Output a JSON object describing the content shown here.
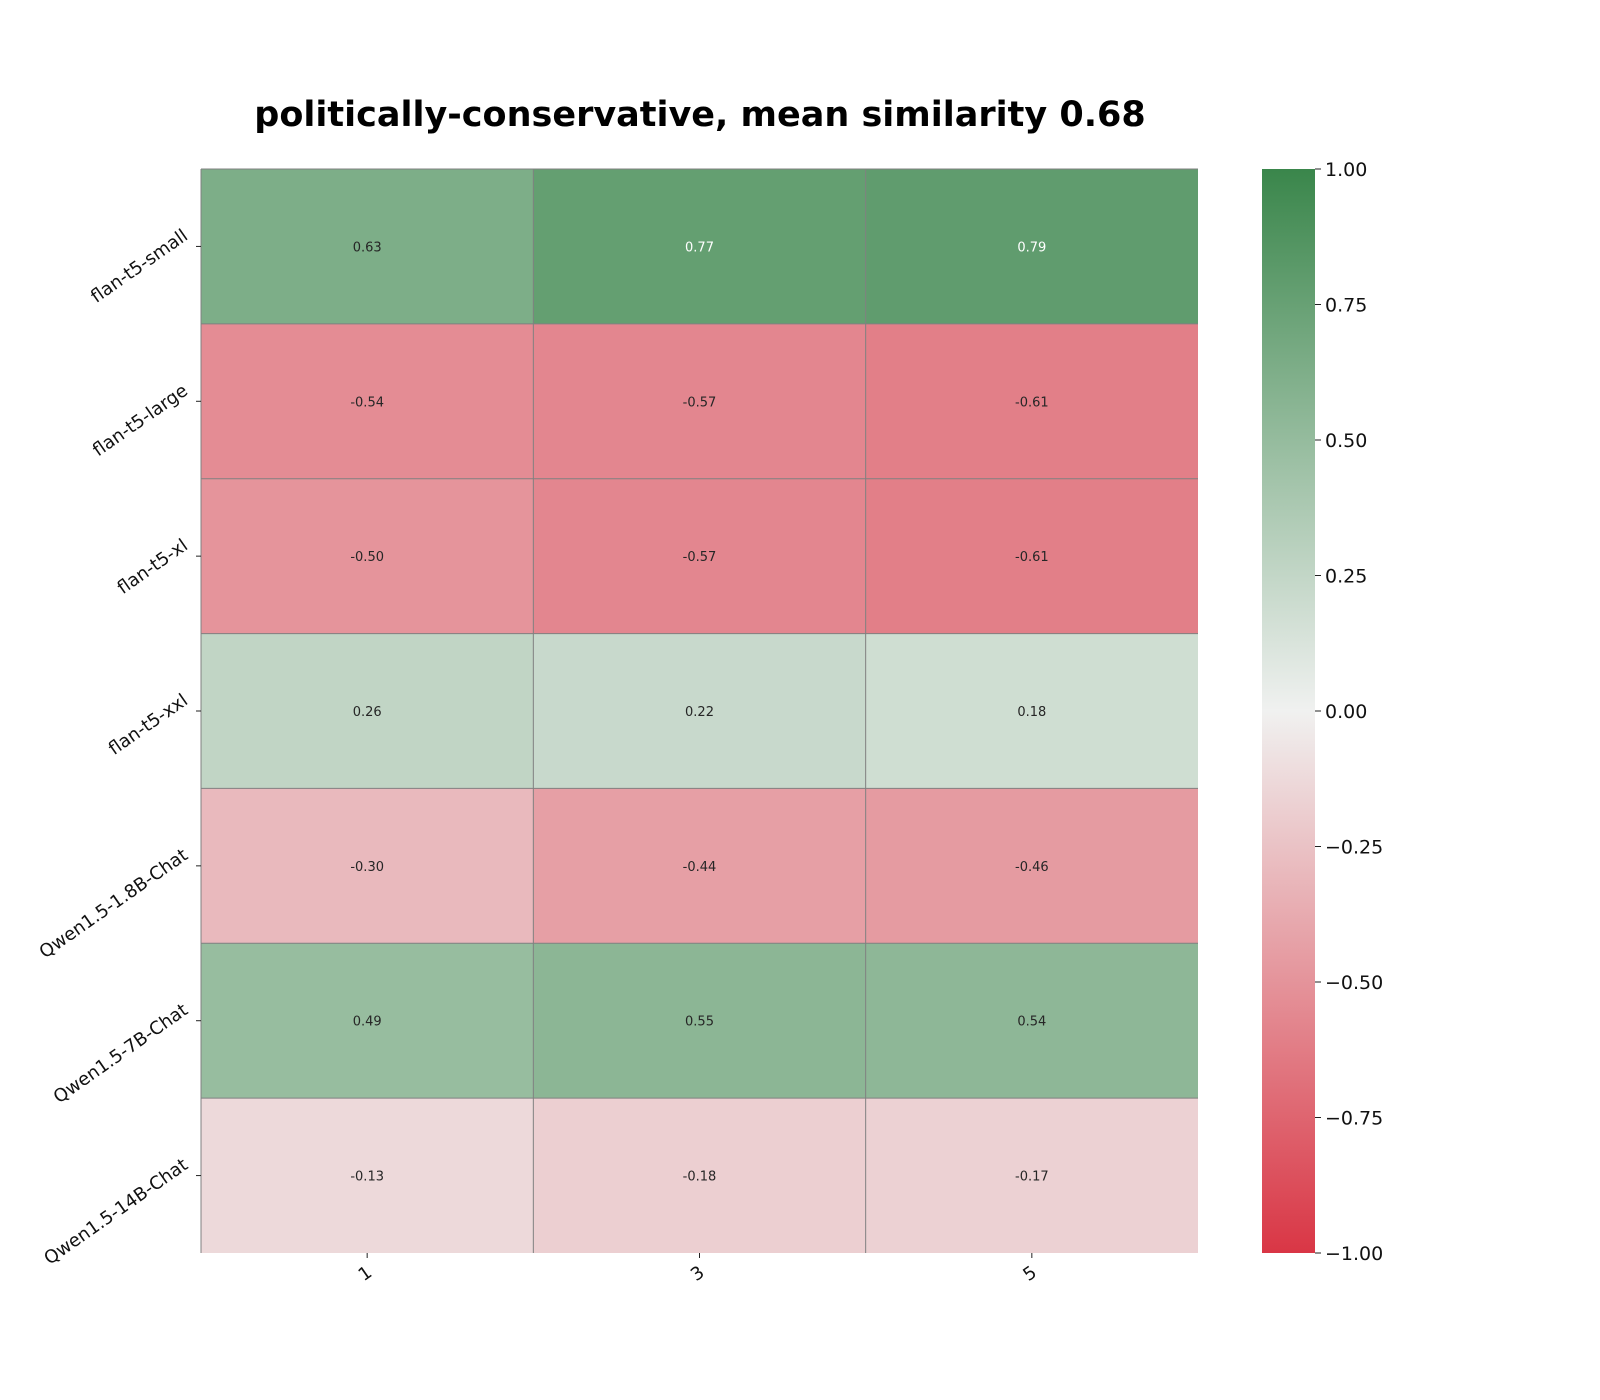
{
  "chart_data": {
    "type": "heatmap",
    "title": "politically-conservative, mean similarity 0.68",
    "xlabel": "",
    "ylabel": "",
    "x_categories": [
      "1",
      "3",
      "5"
    ],
    "y_categories": [
      "flan-t5-small",
      "flan-t5-large",
      "flan-t5-xl",
      "flan-t5-xxl",
      "Qwen1.5-1.8B-Chat",
      "Qwen1.5-7B-Chat",
      "Qwen1.5-14B-Chat"
    ],
    "values": [
      [
        0.63,
        0.77,
        0.79
      ],
      [
        -0.54,
        -0.57,
        -0.61
      ],
      [
        -0.5,
        -0.57,
        -0.61
      ],
      [
        0.26,
        0.22,
        0.18
      ],
      [
        -0.3,
        -0.44,
        -0.46
      ],
      [
        0.49,
        0.55,
        0.54
      ],
      [
        -0.13,
        -0.18,
        -0.17
      ]
    ],
    "value_labels": [
      [
        "0.63",
        "0.77",
        "0.79"
      ],
      [
        "-0.54",
        "-0.57",
        "-0.61"
      ],
      [
        "-0.50",
        "-0.57",
        "-0.61"
      ],
      [
        "0.26",
        "0.22",
        "0.18"
      ],
      [
        "-0.30",
        "-0.44",
        "-0.46"
      ],
      [
        "0.49",
        "0.55",
        "0.54"
      ],
      [
        "-0.13",
        "-0.18",
        "-0.17"
      ]
    ],
    "vmin": -1.0,
    "vmax": 1.0,
    "colormap": {
      "low": "#d93645",
      "mid": "#f0f1f0",
      "high": "#3a864b"
    },
    "colorbar": {
      "ticks": [
        1.0,
        0.75,
        0.5,
        0.25,
        0.0,
        -0.25,
        -0.5,
        -0.75,
        -1.0
      ],
      "tick_labels": [
        "1.00",
        "0.75",
        "0.50",
        "0.25",
        "0.00",
        "−0.25",
        "−0.50",
        "−0.75",
        "−1.00"
      ]
    },
    "grid": true,
    "grid_color": "#808080"
  }
}
